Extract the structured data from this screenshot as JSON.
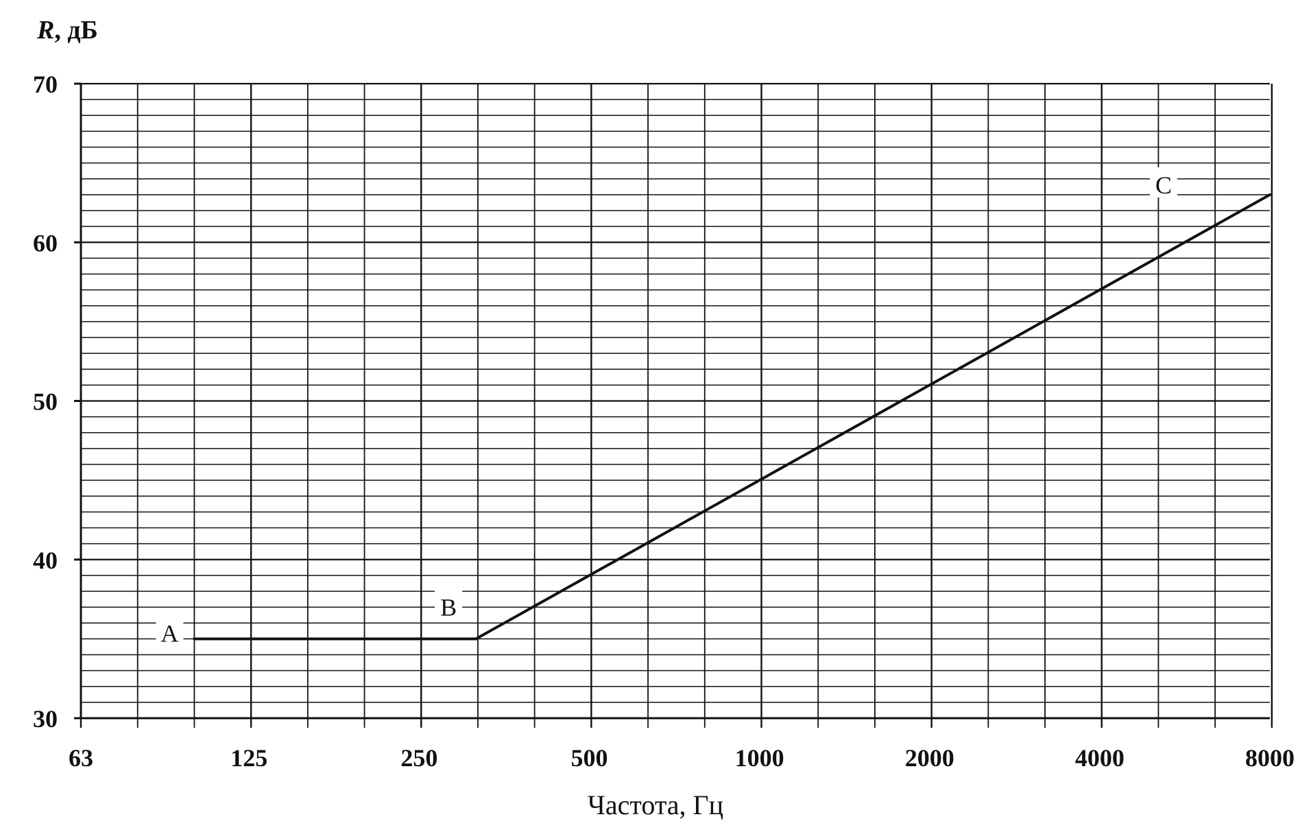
{
  "chart_data": {
    "type": "line",
    "ylabel": {
      "symbol": "R",
      "unit": ", дБ"
    },
    "xlabel": "Частота,  Гц",
    "x_scale": "log2",
    "xlim": [
      63,
      8000
    ],
    "ylim": [
      30,
      70
    ],
    "xticks": [
      63,
      125,
      250,
      500,
      1000,
      2000,
      4000,
      8000
    ],
    "xtick_labels": [
      "63",
      "125",
      "250",
      "500",
      "1000",
      "2000",
      "4000",
      "8000"
    ],
    "yticks": [
      30,
      40,
      50,
      60,
      70
    ],
    "ytick_labels": [
      "30",
      "40",
      "50",
      "60",
      "70"
    ],
    "grid": true,
    "series": [
      {
        "points": [
          {
            "x": 100,
            "y": 35,
            "label": "A"
          },
          {
            "x": 315,
            "y": 35,
            "label": "B"
          },
          {
            "x": 8000,
            "y": 63,
            "label": "C"
          }
        ]
      }
    ],
    "colors": {
      "line": "#111111",
      "grid": "#111111",
      "background": "#ffffff"
    }
  }
}
